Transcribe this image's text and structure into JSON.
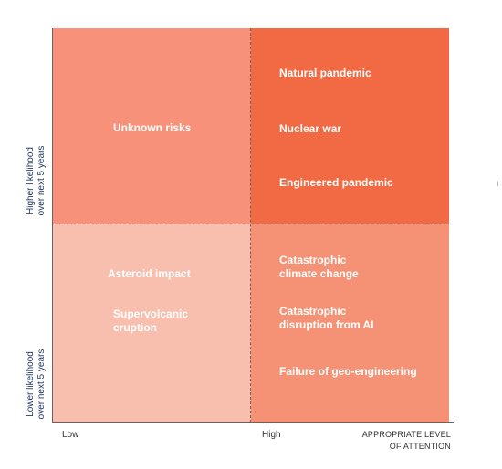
{
  "colors": {
    "top_left": "#f7917a",
    "top_right": "#f26a43",
    "bottom_left": "#f9bfae",
    "bottom_right": "#f59174",
    "label_text": "#ffffff",
    "axis_label": "#1f3a60"
  },
  "quadrants": {
    "top_left": {
      "items": [
        "Unknown risks"
      ]
    },
    "top_right": {
      "items": [
        "Natural pandemic",
        "Nuclear war",
        "Engineered pandemic"
      ]
    },
    "bottom_left": {
      "items": [
        "Asteroid impact",
        "Supervolcanic\neruption"
      ]
    },
    "bottom_right": {
      "items": [
        "Catastrophic\nclimate change",
        "Catastrophic\ndisruption from AI",
        "Failure of geo-engineering"
      ]
    }
  },
  "axes": {
    "x_ticks": [
      "Low",
      "High"
    ],
    "x_title_line1": "APPROPRIATE LEVEL",
    "x_title_line2": "OF ATTENTION",
    "y_top_line1": "Higher likelihood",
    "y_top_line2": "over next 5 years",
    "y_bottom_line1": "Lower likelihood",
    "y_bottom_line2": "over next 5 years"
  }
}
